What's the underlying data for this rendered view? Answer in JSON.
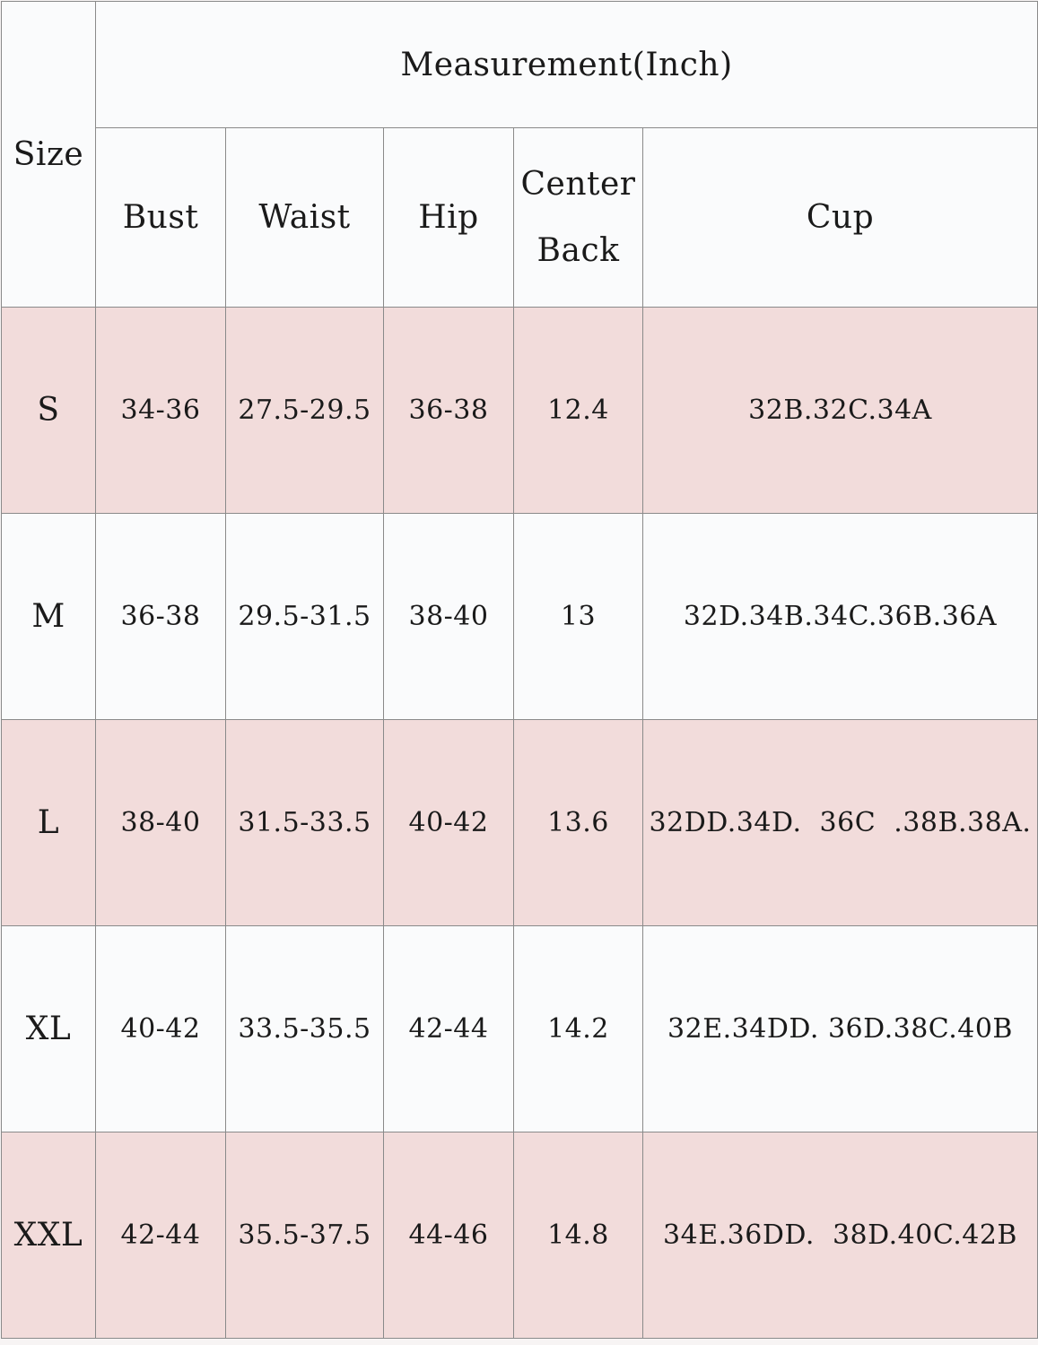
{
  "table": {
    "size_header": "Size",
    "group_header": "Measurement(Inch)",
    "columns": [
      "Bust",
      "Waist",
      "Hip",
      "Center Back",
      "Cup"
    ],
    "center_back_lines": [
      "Center",
      "Back"
    ],
    "rows": [
      {
        "size": "S",
        "bust": "34-36",
        "waist": "27.5-29.5",
        "hip": "36-38",
        "center_back": "12.4",
        "cup": "32B.32C.34A"
      },
      {
        "size": "M",
        "bust": "36-38",
        "waist": "29.5-31.5",
        "hip": "38-40",
        "center_back": "13",
        "cup": "32D.34B.34C.36B.36A"
      },
      {
        "size": "L",
        "bust": "38-40",
        "waist": "31.5-33.5",
        "hip": "40-42",
        "center_back": "13.6",
        "cup": "32DD.34D.  36C  .38B.38A."
      },
      {
        "size": "XL",
        "bust": "40-42",
        "waist": "33.5-35.5",
        "hip": "42-44",
        "center_back": "14.2",
        "cup": "32E.34DD. 36D.38C.40B"
      },
      {
        "size": "XXL",
        "bust": "42-44",
        "waist": "35.5-37.5",
        "hip": "44-46",
        "center_back": "14.8",
        "cup": "34E.36DD.  38D.40C.42B"
      }
    ]
  },
  "colors": {
    "pink_row": "#f2dcdb",
    "white_row": "#fafbfc",
    "border": "#8a8a8a"
  }
}
